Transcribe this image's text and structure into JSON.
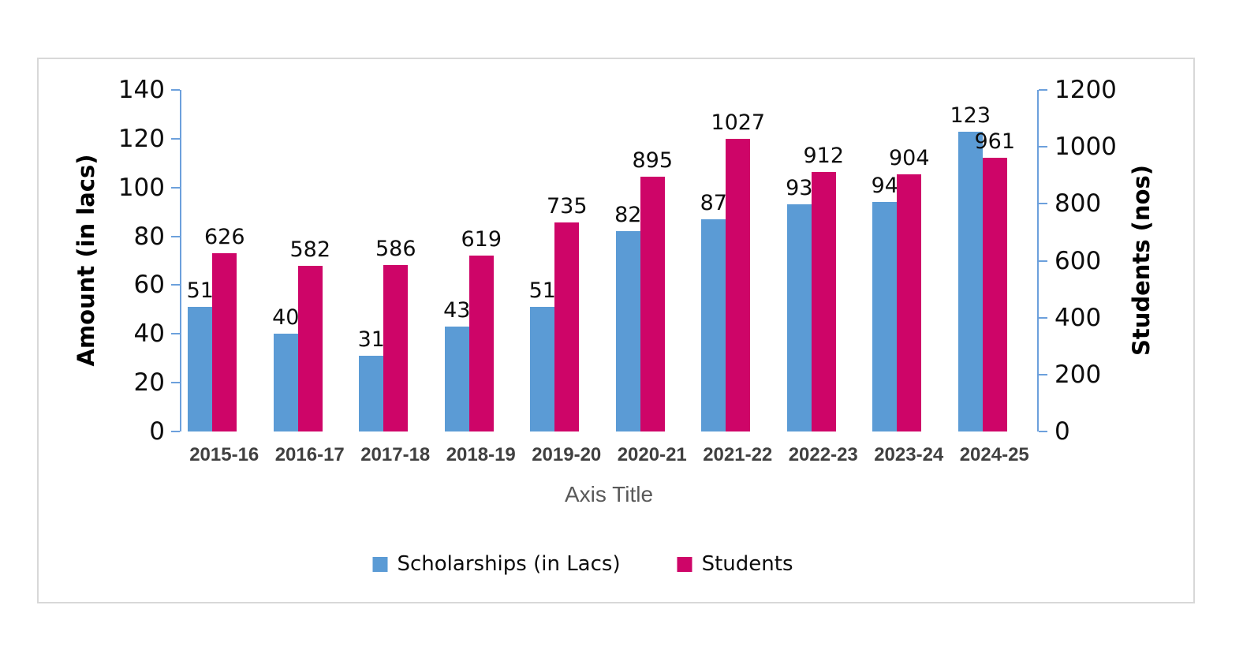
{
  "chart_data": {
    "type": "bar",
    "title": "",
    "categories": [
      "2015-16",
      "2016-17",
      "2017-18",
      "2018-19",
      "2019-20",
      "2020-21",
      "2021-22",
      "2022-23",
      "2023-24",
      "2024-25"
    ],
    "series": [
      {
        "name": "Scholarships (in Lacs)",
        "axis": "left",
        "color": "#5B9BD5",
        "values": [
          51,
          40,
          31,
          43,
          51,
          82,
          87,
          93,
          94,
          123
        ]
      },
      {
        "name": "Students",
        "axis": "right",
        "color": "#CE0568",
        "values": [
          626,
          582,
          586,
          619,
          735,
          895,
          1027,
          912,
          904,
          961
        ]
      }
    ],
    "left_axis": {
      "title": "Amount (in lacs)",
      "min": 0,
      "max": 140,
      "step": 20,
      "tick_labels": [
        "0",
        "20",
        "40",
        "60",
        "80",
        "100",
        "120",
        "140"
      ]
    },
    "right_axis": {
      "title": "Students (nos)",
      "min": 0,
      "max": 1200,
      "step": 200,
      "tick_labels": [
        "0",
        "200",
        "400",
        "600",
        "800",
        "1000",
        "1200"
      ]
    },
    "x_axis": {
      "title": "Axis Title"
    },
    "grid": false,
    "data_labels": true,
    "legend_position": "bottom"
  },
  "style": {
    "background": "#FFFFFF",
    "frame_border_color": "#D8D8D8",
    "axis_line_color": "#6CA0DC",
    "tick_label_color": "#0D0D0D",
    "data_label_color": "#0D0D0D",
    "category_label_color": "#404040",
    "x_axis_title_color": "#595959",
    "y_axis_title_color": "#000000"
  }
}
